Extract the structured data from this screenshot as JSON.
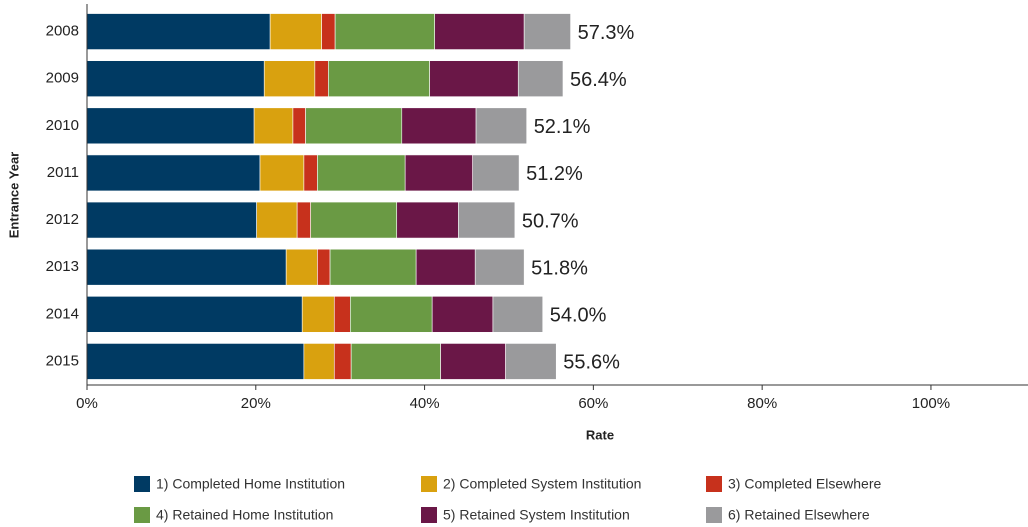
{
  "chart_data": {
    "type": "stacked_bar_horizontal",
    "x_label": "Rate",
    "y_label": "Entrance Year",
    "categories": [
      "2008",
      "2009",
      "2010",
      "2011",
      "2012",
      "2013",
      "2014",
      "2015"
    ],
    "series": [
      {
        "name": "1) Completed Home Institution",
        "color": "#003a63",
        "values": [
          21.7,
          21.0,
          19.8,
          20.5,
          20.1,
          23.6,
          25.5,
          25.7
        ]
      },
      {
        "name": "2) Completed System Institution",
        "color": "#d9a10f",
        "values": [
          6.1,
          6.0,
          4.6,
          5.2,
          4.8,
          3.7,
          3.8,
          3.6
        ]
      },
      {
        "name": "3) Completed Elsewhere",
        "color": "#c7311c",
        "values": [
          1.6,
          1.6,
          1.5,
          1.6,
          1.6,
          1.5,
          1.9,
          2.0
        ]
      },
      {
        "name": "4) Retained Home Institution",
        "color": "#6a9a44",
        "values": [
          11.8,
          12.0,
          11.4,
          10.4,
          10.2,
          10.2,
          9.7,
          10.6
        ]
      },
      {
        "name": "5) Retained System Institution",
        "color": "#6a1747",
        "values": [
          10.6,
          10.5,
          8.8,
          8.0,
          7.3,
          7.0,
          7.2,
          7.7
        ]
      },
      {
        "name": "6) Retained Elsewhere",
        "color": "#9a9a9c",
        "values": [
          5.5,
          5.3,
          6.0,
          5.5,
          6.7,
          5.8,
          5.9,
          6.0
        ]
      }
    ],
    "totals": [
      57.3,
      56.4,
      52.1,
      51.2,
      50.7,
      51.8,
      54.0,
      55.6
    ],
    "total_labels": [
      "57.3%",
      "56.4%",
      "52.1%",
      "51.2%",
      "50.7%",
      "51.8%",
      "54.0%",
      "55.6%"
    ],
    "xlim": [
      0,
      111.5
    ],
    "xticks": [
      {
        "value": 0,
        "label": "0%"
      },
      {
        "value": 20,
        "label": "20%"
      },
      {
        "value": 40,
        "label": "40%"
      },
      {
        "value": 60,
        "label": "60%"
      },
      {
        "value": 80,
        "label": "80%"
      },
      {
        "value": 100,
        "label": "100%"
      }
    ],
    "legend": "bottom"
  }
}
